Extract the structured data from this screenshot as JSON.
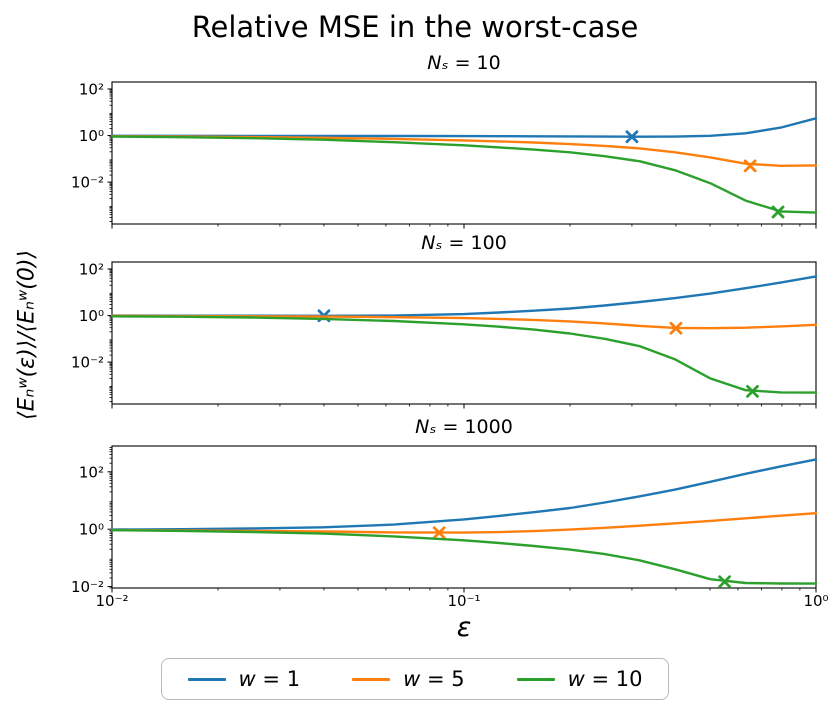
{
  "figure": {
    "title": "Relative MSE in the worst-case",
    "x_label": "ε",
    "y_label": "⟨Eₙʷ(ε)⟩/⟨Eₙʷ(0)⟩"
  },
  "legend": {
    "items": [
      {
        "symbol": "w",
        "text": "= 1",
        "color": "#1f77b4"
      },
      {
        "symbol": "w",
        "text": "= 5",
        "color": "#ff7f0e"
      },
      {
        "symbol": "w",
        "text": "= 10",
        "color": "#2ca02c"
      }
    ]
  },
  "chart_data": {
    "type": "line",
    "title": "Relative MSE in the worst-case",
    "xlabel": "ε",
    "ylabel": "⟨Eₙʷ(ε)⟩/⟨Eₙʷ(0)⟩",
    "x_scale": "log",
    "y_scale": "log",
    "x_range": [
      0.01,
      1
    ],
    "x_ticks": [
      {
        "label": "10⁻²",
        "value": 0.01
      },
      {
        "label": "10⁻¹",
        "value": 0.1
      },
      {
        "label": "10⁰",
        "value": 1
      }
    ],
    "x": [
      0.01,
      0.0158,
      0.0251,
      0.0398,
      0.0631,
      0.1,
      0.126,
      0.158,
      0.2,
      0.251,
      0.316,
      0.398,
      0.501,
      0.631,
      0.794,
      1.0
    ],
    "panels": [
      {
        "title_var": "Nₛ",
        "title_rest": " = 10",
        "y_log_range": [
          -3.8,
          2.3
        ],
        "y_ticks": [
          {
            "label": "10²",
            "log": 2
          },
          {
            "label": "10⁰",
            "log": 0
          },
          {
            "label": "10⁻²",
            "log": -2
          }
        ],
        "series": [
          {
            "id": "w1",
            "name": "w = 1",
            "color": "#1f77b4",
            "y": [
              0.97,
              0.97,
              0.965,
              0.96,
              0.955,
              0.945,
              0.935,
              0.925,
              0.915,
              0.9,
              0.89,
              0.9,
              0.97,
              1.25,
              2.2,
              5.5
            ],
            "marker": {
              "x": 0.3,
              "y": 0.89
            }
          },
          {
            "id": "w5",
            "name": "w = 5",
            "color": "#ff7f0e",
            "y": [
              0.93,
              0.9,
              0.86,
              0.8,
              0.72,
              0.62,
              0.56,
              0.5,
              0.43,
              0.36,
              0.28,
              0.19,
              0.115,
              0.062,
              0.05,
              0.052
            ],
            "marker": {
              "x": 0.65,
              "y": 0.05
            }
          },
          {
            "id": "w10",
            "name": "w = 10",
            "color": "#2ca02c",
            "y": [
              0.9,
              0.85,
              0.77,
              0.66,
              0.52,
              0.38,
              0.31,
              0.25,
              0.19,
              0.13,
              0.078,
              0.032,
              0.009,
              0.0016,
              0.00055,
              0.00049
            ],
            "marker": {
              "x": 0.78,
              "y": 0.00052
            }
          }
        ]
      },
      {
        "title_var": "Nₛ",
        "title_rest": " = 100",
        "y_log_range": [
          -3.8,
          2.3
        ],
        "y_ticks": [
          {
            "label": "10²",
            "log": 2
          },
          {
            "label": "10⁰",
            "log": 0
          },
          {
            "label": "10⁻²",
            "log": -2
          }
        ],
        "series": [
          {
            "id": "w1",
            "name": "w = 1",
            "color": "#1f77b4",
            "y": [
              0.99,
              0.985,
              0.982,
              0.978,
              0.99,
              1.15,
              1.35,
              1.62,
              2.0,
              2.7,
              3.8,
              5.6,
              8.8,
              15,
              26,
              48
            ],
            "marker": {
              "x": 0.04,
              "y": 0.978
            }
          },
          {
            "id": "w5",
            "name": "w = 5",
            "color": "#ff7f0e",
            "y": [
              0.97,
              0.95,
              0.93,
              0.9,
              0.85,
              0.78,
              0.72,
              0.65,
              0.56,
              0.46,
              0.36,
              0.295,
              0.285,
              0.3,
              0.34,
              0.4
            ],
            "marker": {
              "x": 0.4,
              "y": 0.285
            }
          },
          {
            "id": "w10",
            "name": "w = 10",
            "color": "#2ca02c",
            "y": [
              0.93,
              0.89,
              0.82,
              0.72,
              0.58,
              0.42,
              0.33,
              0.25,
              0.17,
              0.1,
              0.048,
              0.013,
              0.002,
              0.00062,
              0.0005,
              0.00049
            ],
            "marker": {
              "x": 0.66,
              "y": 0.00055
            }
          }
        ]
      },
      {
        "title_var": "Nₛ",
        "title_rest": " = 1000",
        "y_log_range": [
          -2.05,
          2.9
        ],
        "y_ticks": [
          {
            "label": "10²",
            "log": 2
          },
          {
            "label": "10⁰",
            "log": 0
          },
          {
            "label": "10⁻²",
            "log": -2
          }
        ],
        "series": [
          {
            "id": "w1",
            "name": "w = 1",
            "color": "#1f77b4",
            "y": [
              0.97,
              1.0,
              1.06,
              1.16,
              1.45,
              2.2,
              2.9,
              3.9,
              5.5,
              8.5,
              14,
              24,
              45,
              85,
              155,
              270
            ],
            "marker": null
          },
          {
            "id": "w5",
            "name": "w = 5",
            "color": "#ff7f0e",
            "y": [
              0.93,
              0.9,
              0.87,
              0.83,
              0.775,
              0.758,
              0.79,
              0.86,
              0.97,
              1.12,
              1.32,
              1.6,
              1.95,
              2.4,
              2.95,
              3.6
            ],
            "marker": {
              "x": 0.085,
              "y": 0.755
            }
          },
          {
            "id": "w10",
            "name": "w = 10",
            "color": "#2ca02c",
            "y": [
              0.92,
              0.87,
              0.8,
              0.7,
              0.56,
              0.41,
              0.33,
              0.26,
              0.195,
              0.135,
              0.082,
              0.04,
              0.018,
              0.0133,
              0.0128,
              0.0127
            ],
            "marker": {
              "x": 0.55,
              "y": 0.0148
            }
          }
        ]
      }
    ]
  }
}
